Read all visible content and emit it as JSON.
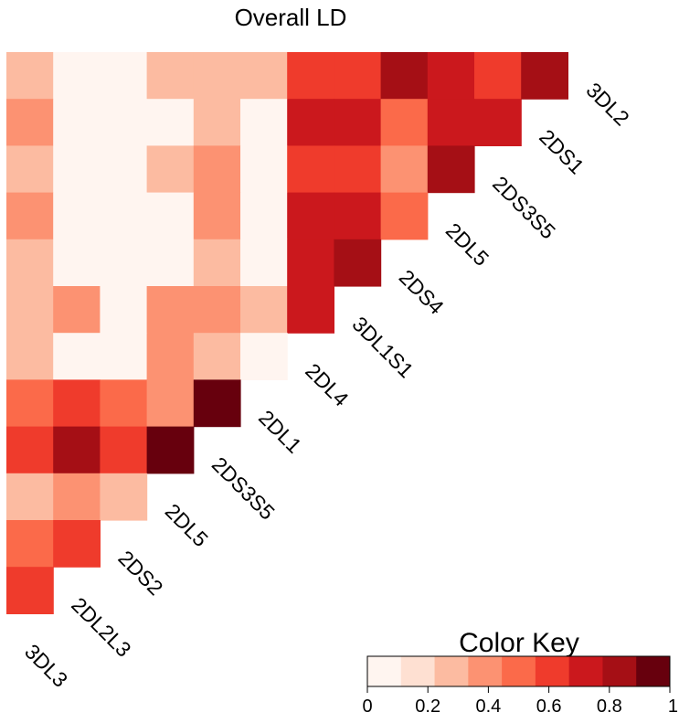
{
  "chart_data": {
    "type": "heatmap",
    "title": "Overall LD",
    "value_range": [
      0,
      1
    ],
    "row_labels": [
      "3DL2",
      "2DS1",
      "2DS3S5",
      "2DL5",
      "2DS4",
      "3DL1S1",
      "2DL4",
      "2DL1",
      "2DS3S5",
      "2DL5",
      "2DS2",
      "2DL2L3",
      "3DL3"
    ],
    "matrix": [
      [
        0.25,
        0.05,
        0.05,
        0.25,
        0.25,
        0.25,
        0.65,
        0.65,
        0.85,
        0.75,
        0.65,
        0.85
      ],
      [
        0.35,
        0.05,
        0.05,
        0.05,
        0.25,
        0.05,
        0.75,
        0.75,
        0.55,
        0.75,
        0.75
      ],
      [
        0.25,
        0.05,
        0.05,
        0.25,
        0.35,
        0.05,
        0.65,
        0.65,
        0.35,
        0.85
      ],
      [
        0.35,
        0.05,
        0.05,
        0.05,
        0.35,
        0.05,
        0.75,
        0.75,
        0.55
      ],
      [
        0.25,
        0.05,
        0.05,
        0.05,
        0.25,
        0.05,
        0.75,
        0.85
      ],
      [
        0.25,
        0.35,
        0.05,
        0.35,
        0.35,
        0.25,
        0.75
      ],
      [
        0.25,
        0.05,
        0.05,
        0.35,
        0.25,
        0.05
      ],
      [
        0.55,
        0.65,
        0.55,
        0.35,
        0.95
      ],
      [
        0.65,
        0.85,
        0.65,
        0.95
      ],
      [
        0.25,
        0.35,
        0.25
      ],
      [
        0.55,
        0.65
      ],
      [
        0.65
      ]
    ],
    "color_key": {
      "title": "Color Key",
      "colors": [
        "#fff5f0",
        "#fee0d2",
        "#fcbba1",
        "#fc9272",
        "#fb6a4a",
        "#ef3b2c",
        "#cb181d",
        "#a50f15",
        "#67000d"
      ],
      "ticks": [
        "0",
        "0.2",
        "0.4",
        "0.6",
        "0.8",
        "1"
      ]
    }
  }
}
